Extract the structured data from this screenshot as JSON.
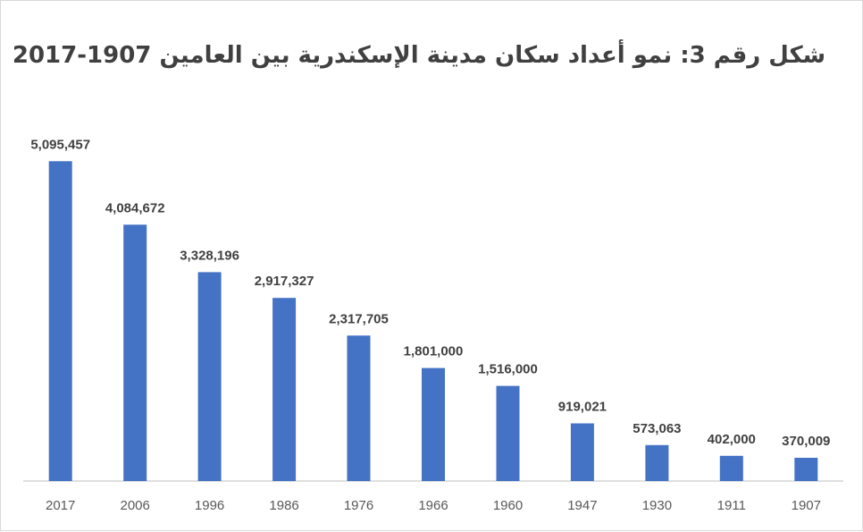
{
  "chart_data": {
    "type": "bar",
    "title": "شكل رقم 3: نمو أعداد سكان مدينة الإسكندرية بين العامين 1907-2017",
    "categories": [
      "2017",
      "2006",
      "1996",
      "1986",
      "1976",
      "1966",
      "1960",
      "1947",
      "1930",
      "1911",
      "1907"
    ],
    "values": [
      5095457,
      4084672,
      3328196,
      2917327,
      2317705,
      1801000,
      1516000,
      919021,
      573063,
      402000,
      370009
    ],
    "value_labels": [
      "5,095,457",
      "4,084,672",
      "3,328,196",
      "2,917,327",
      "2,317,705",
      "1,801,000",
      "1,516,000",
      "919,021",
      "573,063",
      "402,000",
      "370,009"
    ],
    "xlabel": "",
    "ylabel": "",
    "ylim": [
      0,
      5100000
    ],
    "grid": false,
    "legend": "none",
    "bar_color": "#4472c4"
  }
}
